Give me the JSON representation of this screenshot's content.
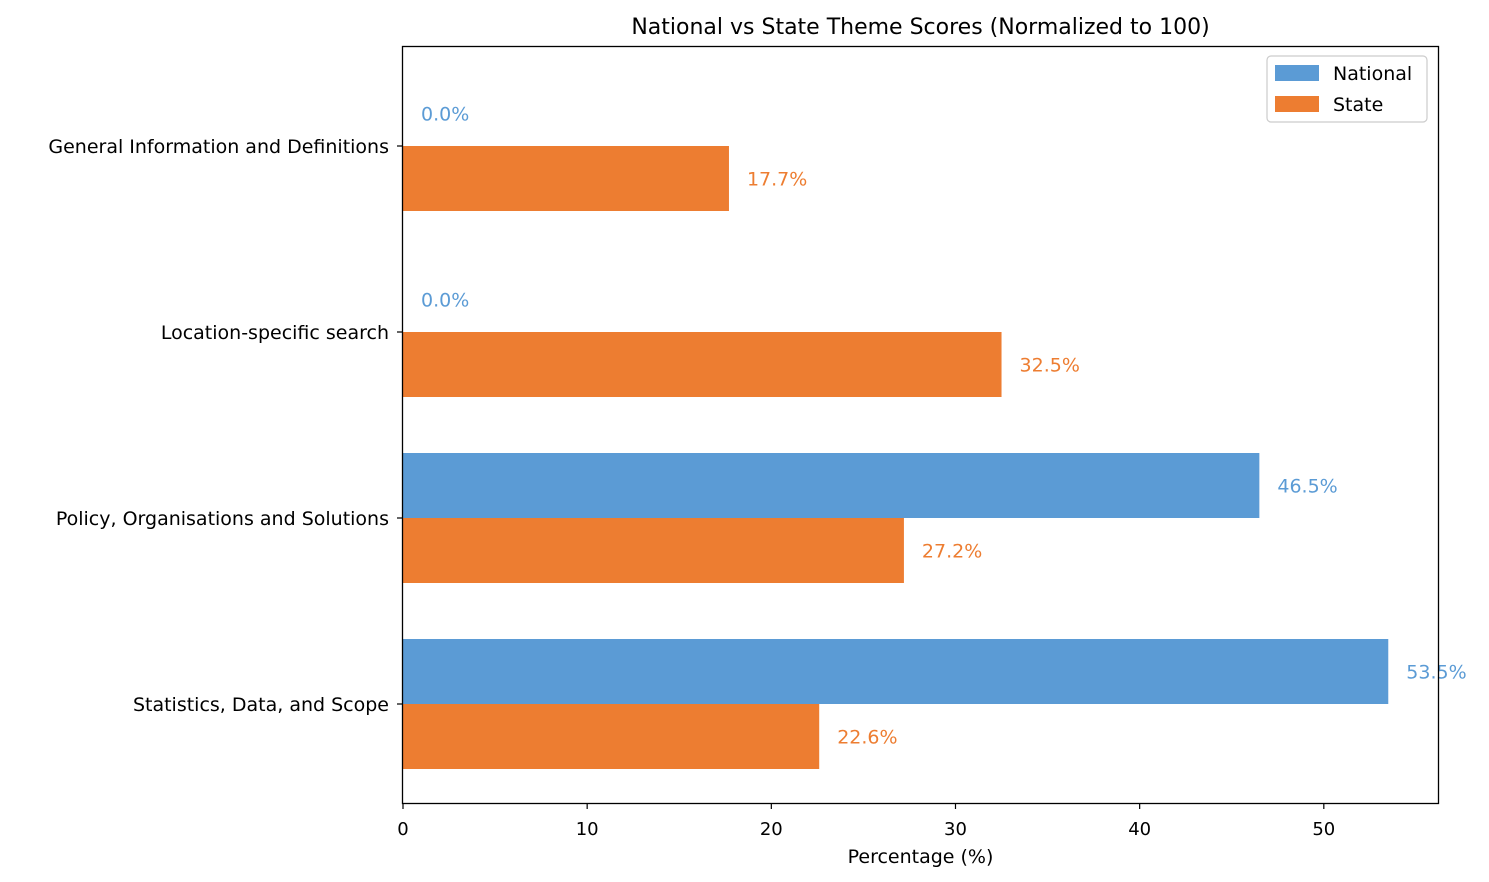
{
  "chart_data": {
    "type": "bar",
    "orientation": "horizontal",
    "title": "National vs State Theme Scores (Normalized to 100)",
    "xlabel": "Percentage (%)",
    "ylabel": "",
    "xlim": [
      0,
      56.2
    ],
    "xticks": [
      0,
      10,
      20,
      30,
      40,
      50
    ],
    "grid": false,
    "legend_position": "top-right",
    "categories": [
      "General Information and Definitions",
      "Location-specific search",
      "Policy, Organisations and Solutions",
      "Statistics, Data, and Scope"
    ],
    "series": [
      {
        "name": "National",
        "color": "#5b9bd5",
        "values": [
          0.0,
          0.0,
          46.5,
          53.5
        ],
        "labels": [
          "0.0%",
          "0.0%",
          "46.5%",
          "53.5%"
        ]
      },
      {
        "name": "State",
        "color": "#ed7d31",
        "values": [
          17.7,
          32.5,
          27.2,
          22.6
        ],
        "labels": [
          "17.7%",
          "32.5%",
          "27.2%",
          "22.6%"
        ]
      }
    ]
  }
}
